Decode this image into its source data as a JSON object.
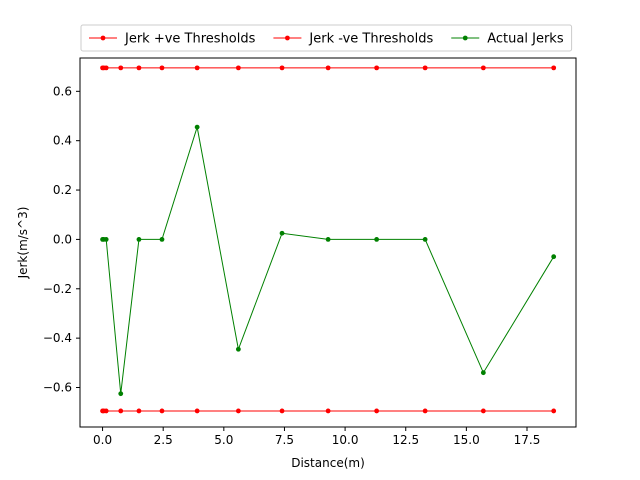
{
  "chart_data": {
    "type": "line",
    "title": "",
    "xlabel": "Distance(m)",
    "ylabel": "Jerk(m/s^3)",
    "xlim": [
      -0.93,
      19.52
    ],
    "ylim": [
      -0.76,
      0.735
    ],
    "xticks": [
      0.0,
      2.5,
      5.0,
      7.5,
      10.0,
      12.5,
      15.0,
      17.5
    ],
    "xtick_labels": [
      "0.0",
      "2.5",
      "5.0",
      "7.5",
      "10.0",
      "12.5",
      "15.0",
      "17.5"
    ],
    "yticks": [
      -0.6,
      -0.4,
      -0.2,
      0.0,
      0.2,
      0.4,
      0.6
    ],
    "ytick_labels": [
      "−0.6",
      "−0.4",
      "−0.2",
      "0.0",
      "0.2",
      "0.4",
      "0.6"
    ],
    "grid": false,
    "legend_placement": "top, above plot",
    "x": [
      0.0,
      0.05,
      0.15,
      0.75,
      1.5,
      2.45,
      3.9,
      5.6,
      7.4,
      9.3,
      11.3,
      13.3,
      15.7,
      18.6
    ],
    "series": [
      {
        "name": "Jerk +ve Thresholds",
        "color": "#ff0000",
        "values": [
          0.695,
          0.695,
          0.695,
          0.695,
          0.695,
          0.695,
          0.695,
          0.695,
          0.695,
          0.695,
          0.695,
          0.695,
          0.695,
          0.695
        ]
      },
      {
        "name": "Jerk -ve Thresholds",
        "color": "#ff0000",
        "values": [
          -0.695,
          -0.695,
          -0.695,
          -0.695,
          -0.695,
          -0.695,
          -0.695,
          -0.695,
          -0.695,
          -0.695,
          -0.695,
          -0.695,
          -0.695,
          -0.695
        ]
      },
      {
        "name": "Actual Jerks",
        "color": "#008000",
        "values": [
          0.0,
          0.0,
          0.0,
          -0.625,
          0.0,
          0.0,
          0.455,
          -0.445,
          0.025,
          0.0,
          0.0,
          0.0,
          -0.54,
          -0.07
        ]
      }
    ]
  }
}
